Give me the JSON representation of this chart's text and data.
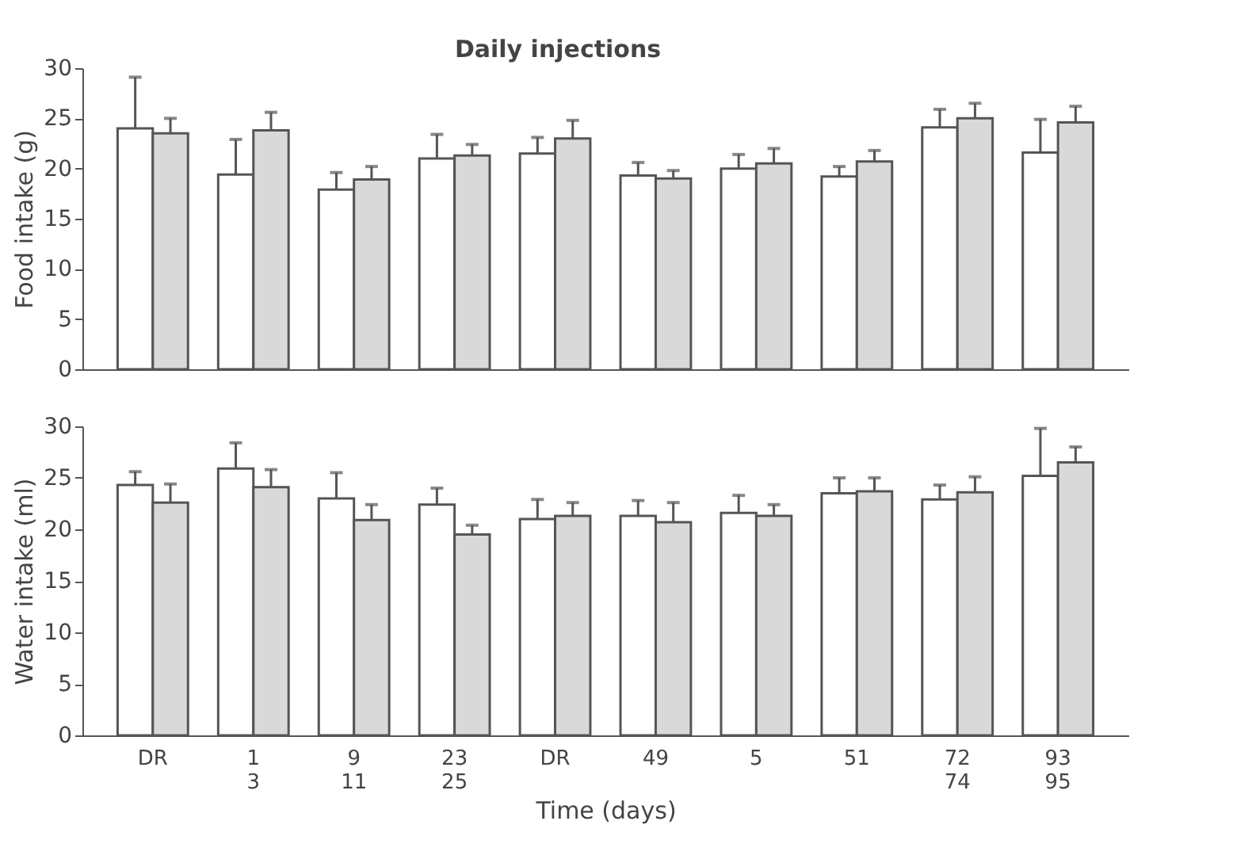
{
  "chart_data": [
    {
      "type": "bar",
      "ylabel": "Food intake (g)",
      "annotations": [
        "Daily injections"
      ],
      "tick_labels": "y",
      "grid": false,
      "ylim": [
        0,
        30
      ],
      "yticks": [
        0,
        5,
        10,
        15,
        20,
        25,
        30
      ],
      "categories": [
        null,
        null,
        null,
        null,
        null,
        null,
        null,
        null,
        null,
        null
      ],
      "series": [
        {
          "color": "#ffffff",
          "values": [
            24,
            19.4,
            17.9,
            21,
            21.5,
            19.3,
            20,
            19.2,
            24.1,
            21.6
          ],
          "errors": [
            [
              24,
              29.1
            ],
            [
              19.4,
              22.9
            ],
            [
              17.9,
              19.6
            ],
            [
              21,
              23.4
            ],
            [
              21.5,
              23.1
            ],
            [
              19.3,
              20.6
            ],
            [
              20,
              21.4
            ],
            [
              19.2,
              20.2
            ],
            [
              24.1,
              25.9
            ],
            [
              21.6,
              24.9
            ]
          ]
        },
        {
          "color": "#d9d9d9",
          "values": [
            23.5,
            23.8,
            18.9,
            21.3,
            23,
            19,
            20.5,
            20.7,
            25,
            24.6
          ],
          "errors": [
            [
              23.5,
              25
            ],
            [
              23.8,
              25.6
            ],
            [
              18.9,
              20.2
            ],
            [
              21.3,
              22.4
            ],
            [
              23,
              24.8
            ],
            [
              19,
              19.8
            ],
            [
              20.5,
              22
            ],
            [
              20.7,
              21.8
            ],
            [
              25,
              26.5
            ],
            [
              24.6,
              26.2
            ]
          ]
        }
      ]
    },
    {
      "type": "bar",
      "ylabel": "Water intake (ml)",
      "xlabel": "Time (days)",
      "grid": false,
      "ylim": [
        0,
        30
      ],
      "yticks": [
        0,
        5,
        10,
        15,
        20,
        25,
        30
      ],
      "categories": [
        "DR",
        "1\n3",
        "9\n11",
        "23\n25",
        "DR",
        "49",
        "5",
        "51",
        "72\n74",
        "93\n95"
      ],
      "series": [
        {
          "color": "#ffffff",
          "values": [
            24.3,
            25.9,
            23,
            22.4,
            21,
            21.3,
            21.6,
            23.5,
            22.9,
            25.2
          ],
          "errors": [
            [
              24.3,
              25.6
            ],
            [
              25.9,
              28.4
            ],
            [
              23,
              25.5
            ],
            [
              22.4,
              24
            ],
            [
              21,
              22.9
            ],
            [
              21.3,
              22.8
            ],
            [
              21.6,
              23.3
            ],
            [
              23.5,
              25
            ],
            [
              22.9,
              24.3
            ],
            [
              25.2,
              29.8
            ]
          ]
        },
        {
          "color": "#d9d9d9",
          "values": [
            22.6,
            24.1,
            20.9,
            19.5,
            21.3,
            20.7,
            21.3,
            23.7,
            23.6,
            26.5
          ],
          "errors": [
            [
              22.6,
              24.4
            ],
            [
              24.1,
              25.8
            ],
            [
              20.9,
              22.4
            ],
            [
              19.5,
              20.4
            ],
            [
              21.3,
              22.6
            ],
            [
              20.7,
              22.6
            ],
            [
              21.3,
              22.4
            ],
            [
              23.7,
              25
            ],
            [
              23.6,
              25.1
            ],
            [
              26.5,
              28
            ]
          ]
        }
      ]
    }
  ]
}
